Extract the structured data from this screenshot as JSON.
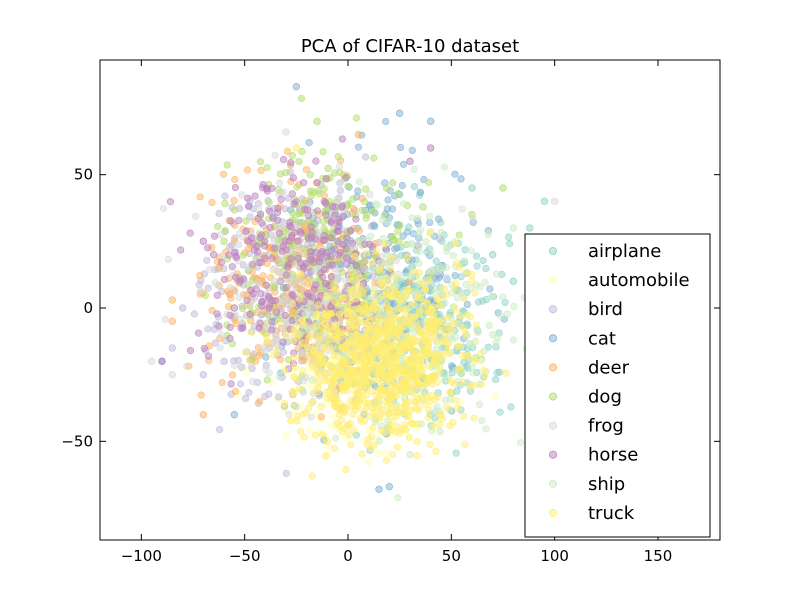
{
  "chart_data": {
    "type": "scatter",
    "title": "PCA of CIFAR-10 dataset",
    "xlabel": "",
    "ylabel": "",
    "xlim": [
      -120,
      180
    ],
    "ylim": [
      -87,
      93
    ],
    "xticks": [
      -100,
      -50,
      0,
      50,
      100,
      150
    ],
    "yticks": [
      -50,
      0,
      50
    ],
    "xtick_labels": [
      "−100",
      "−50",
      "0",
      "50",
      "100",
      "150"
    ],
    "ytick_labels": [
      "−50",
      "0",
      "50"
    ],
    "grid": false,
    "legend_position": "lower-right",
    "alpha": 0.5,
    "series": [
      {
        "name": "airplane",
        "color": "#8dd3c7",
        "center": [
          35,
          -5
        ],
        "spread": [
          28,
          22
        ],
        "values": [
          [
            95,
            40
          ],
          [
            88,
            30
          ],
          [
            60,
            45
          ],
          [
            70,
            20
          ],
          [
            40,
            -40
          ],
          [
            80,
            10
          ]
        ]
      },
      {
        "name": "automobile",
        "color": "#ffffb3",
        "center": [
          5,
          -18
        ],
        "spread": [
          30,
          20
        ],
        "values": [
          [
            -10,
            -55
          ],
          [
            10,
            -58
          ],
          [
            20,
            -48
          ],
          [
            -5,
            -45
          ]
        ]
      },
      {
        "name": "bird",
        "color": "#bebada",
        "center": [
          -25,
          5
        ],
        "spread": [
          32,
          24
        ],
        "values": [
          [
            -85,
            -15
          ],
          [
            -70,
            -25
          ],
          [
            -60,
            -20
          ],
          [
            -80,
            0
          ]
        ]
      },
      {
        "name": "cat",
        "color": "#80b1d3",
        "center": [
          10,
          10
        ],
        "spread": [
          30,
          25
        ],
        "values": [
          [
            -25,
            83
          ],
          [
            25,
            73
          ],
          [
            40,
            70
          ],
          [
            15,
            -68
          ],
          [
            20,
            -67
          ],
          [
            -55,
            -40
          ],
          [
            -90,
            -20
          ]
        ]
      },
      {
        "name": "deer",
        "color": "#fdb462",
        "center": [
          -25,
          10
        ],
        "spread": [
          28,
          22
        ],
        "values": [
          [
            -85,
            -5
          ],
          [
            -85,
            3
          ],
          [
            5,
            65
          ],
          [
            -70,
            -40
          ]
        ]
      },
      {
        "name": "dog",
        "color": "#b3de69",
        "center": [
          -15,
          20
        ],
        "spread": [
          30,
          22
        ],
        "values": [
          [
            -15,
            70
          ],
          [
            -60,
            25
          ],
          [
            75,
            45
          ],
          [
            60,
            35
          ]
        ]
      },
      {
        "name": "frog",
        "color": "#d9d9d9",
        "center": [
          -20,
          5
        ],
        "spread": [
          34,
          24
        ],
        "values": [
          [
            -95,
            -20
          ],
          [
            -30,
            66
          ],
          [
            100,
            40
          ],
          [
            -85,
            -25
          ]
        ]
      },
      {
        "name": "horse",
        "color": "#bc80bd",
        "center": [
          -25,
          15
        ],
        "spread": [
          30,
          22
        ],
        "values": [
          [
            -70,
            25
          ],
          [
            -65,
            20
          ],
          [
            -55,
            0
          ],
          [
            40,
            60
          ],
          [
            30,
            55
          ],
          [
            -90,
            -20
          ]
        ]
      },
      {
        "name": "ship",
        "color": "#ccebc5",
        "center": [
          35,
          -5
        ],
        "spread": [
          30,
          24
        ],
        "values": [
          [
            80,
            30
          ],
          [
            90,
            20
          ],
          [
            70,
            -10
          ],
          [
            30,
            -55
          ]
        ]
      },
      {
        "name": "truck",
        "color": "#ffed6f",
        "center": [
          15,
          -18
        ],
        "spread": [
          26,
          18
        ],
        "values": [
          [
            -25,
            60
          ],
          [
            60,
            10
          ],
          [
            -10,
            -50
          ],
          [
            45,
            -40
          ]
        ]
      }
    ]
  }
}
